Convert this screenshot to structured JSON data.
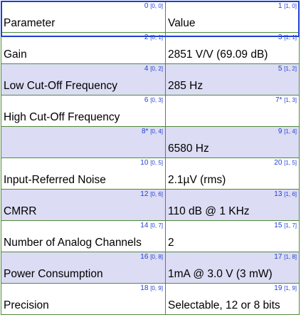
{
  "rows": [
    {
      "shade": false,
      "cells": [
        {
          "idx": "0",
          "pos": "[0, 0]",
          "text": "Parameter"
        },
        {
          "idx": "1",
          "pos": "[1, 0]",
          "text": "Value"
        }
      ]
    },
    {
      "shade": false,
      "cells": [
        {
          "idx": "2",
          "pos": "[0, 1]",
          "text": "Gain"
        },
        {
          "idx": "3",
          "pos": "[1, 1]",
          "text": "2851 V/V (69.09 dB)"
        }
      ]
    },
    {
      "shade": true,
      "cells": [
        {
          "idx": "4",
          "pos": "[0, 2]",
          "text": "Low Cut-Off Frequency"
        },
        {
          "idx": "5",
          "pos": "[1, 2]",
          "text": "285 Hz"
        }
      ]
    },
    {
      "shade": false,
      "cells": [
        {
          "idx": "6",
          "pos": "[0, 3]",
          "text": "High Cut-Off Frequency"
        },
        {
          "idx": "7*",
          "pos": "[1, 3]",
          "text": ""
        }
      ]
    },
    {
      "shade": true,
      "cells": [
        {
          "idx": "8*",
          "pos": "[0, 4]",
          "text": ""
        },
        {
          "idx": "9",
          "pos": "[1, 4]",
          "text": "6580 Hz"
        }
      ]
    },
    {
      "shade": false,
      "cells": [
        {
          "idx": "10",
          "pos": "[0, 5]",
          "text": "Input-Referred Noise"
        },
        {
          "idx": "20",
          "pos": "[1, 5]",
          "text": "2.1µV (rms)"
        }
      ]
    },
    {
      "shade": true,
      "cells": [
        {
          "idx": "12",
          "pos": "[0, 6]",
          "text": "CMRR"
        },
        {
          "idx": "13",
          "pos": "[1, 6]",
          "text": "110 dB @ 1 KHz"
        }
      ]
    },
    {
      "shade": false,
      "cells": [
        {
          "idx": "14",
          "pos": "[0, 7]",
          "text": "Number of Analog Channels"
        },
        {
          "idx": "15",
          "pos": "[1, 7]",
          "text": "2"
        }
      ]
    },
    {
      "shade": true,
      "cells": [
        {
          "idx": "16",
          "pos": "[0, 8]",
          "text": "Power Consumption"
        },
        {
          "idx": "17",
          "pos": "[1, 8]",
          "text": "1mA @ 3.0 V (3 mW)"
        }
      ]
    },
    {
      "shade": false,
      "cells": [
        {
          "idx": "18",
          "pos": "[0, 9]",
          "text": "Precision"
        },
        {
          "idx": "19",
          "pos": "[1, 9]",
          "text": "Selectable, 12 or 8 bits"
        }
      ]
    }
  ]
}
